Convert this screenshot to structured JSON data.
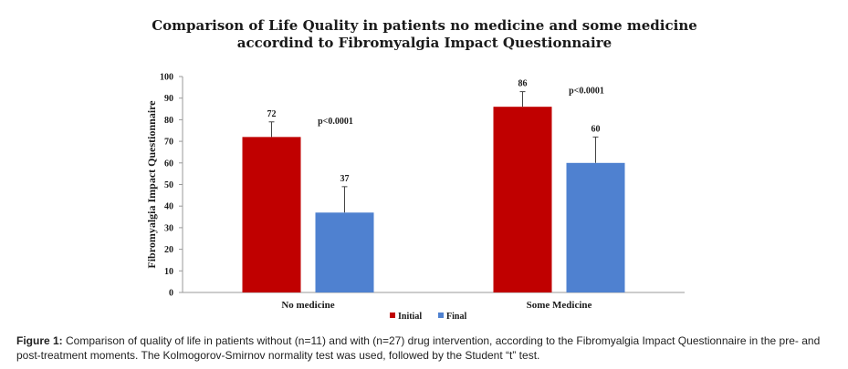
{
  "chart_data": {
    "type": "bar",
    "title_lines": [
      "Comparison of Life Quality in patients no medicine and some medicine",
      "accordind to Fibromyalgia Impact Questionnaire"
    ],
    "xlabel": "",
    "ylabel": "Fibromyalgia Impact Questionnaire",
    "ylim": [
      0,
      100
    ],
    "yticks": [
      0,
      10,
      20,
      30,
      40,
      50,
      60,
      70,
      80,
      90,
      100
    ],
    "categories": [
      "No medicine",
      "Some Medicine"
    ],
    "series": [
      {
        "name": "Initial",
        "color": "#c00000",
        "values": [
          72,
          86
        ],
        "error_upper": [
          79,
          93
        ]
      },
      {
        "name": "Final",
        "color": "#4f81d0",
        "values": [
          37,
          60
        ],
        "error_upper": [
          49,
          72
        ]
      }
    ],
    "data_labels": [
      [
        "72",
        "86"
      ],
      [
        "37",
        "60"
      ]
    ],
    "annotations": [
      "p<0.0001",
      "p<0.0001"
    ],
    "legend_position": "bottom",
    "grid": false
  },
  "caption": {
    "label": "Figure 1:",
    "text": " Comparison of quality of life in patients without (n=11) and with (n=27) drug intervention, according to the Fibromyalgia Impact Questionnaire in the pre- and post-treatment moments. The Kolmogorov-Smirnov normality test was used, followed by the Student “t” test."
  }
}
